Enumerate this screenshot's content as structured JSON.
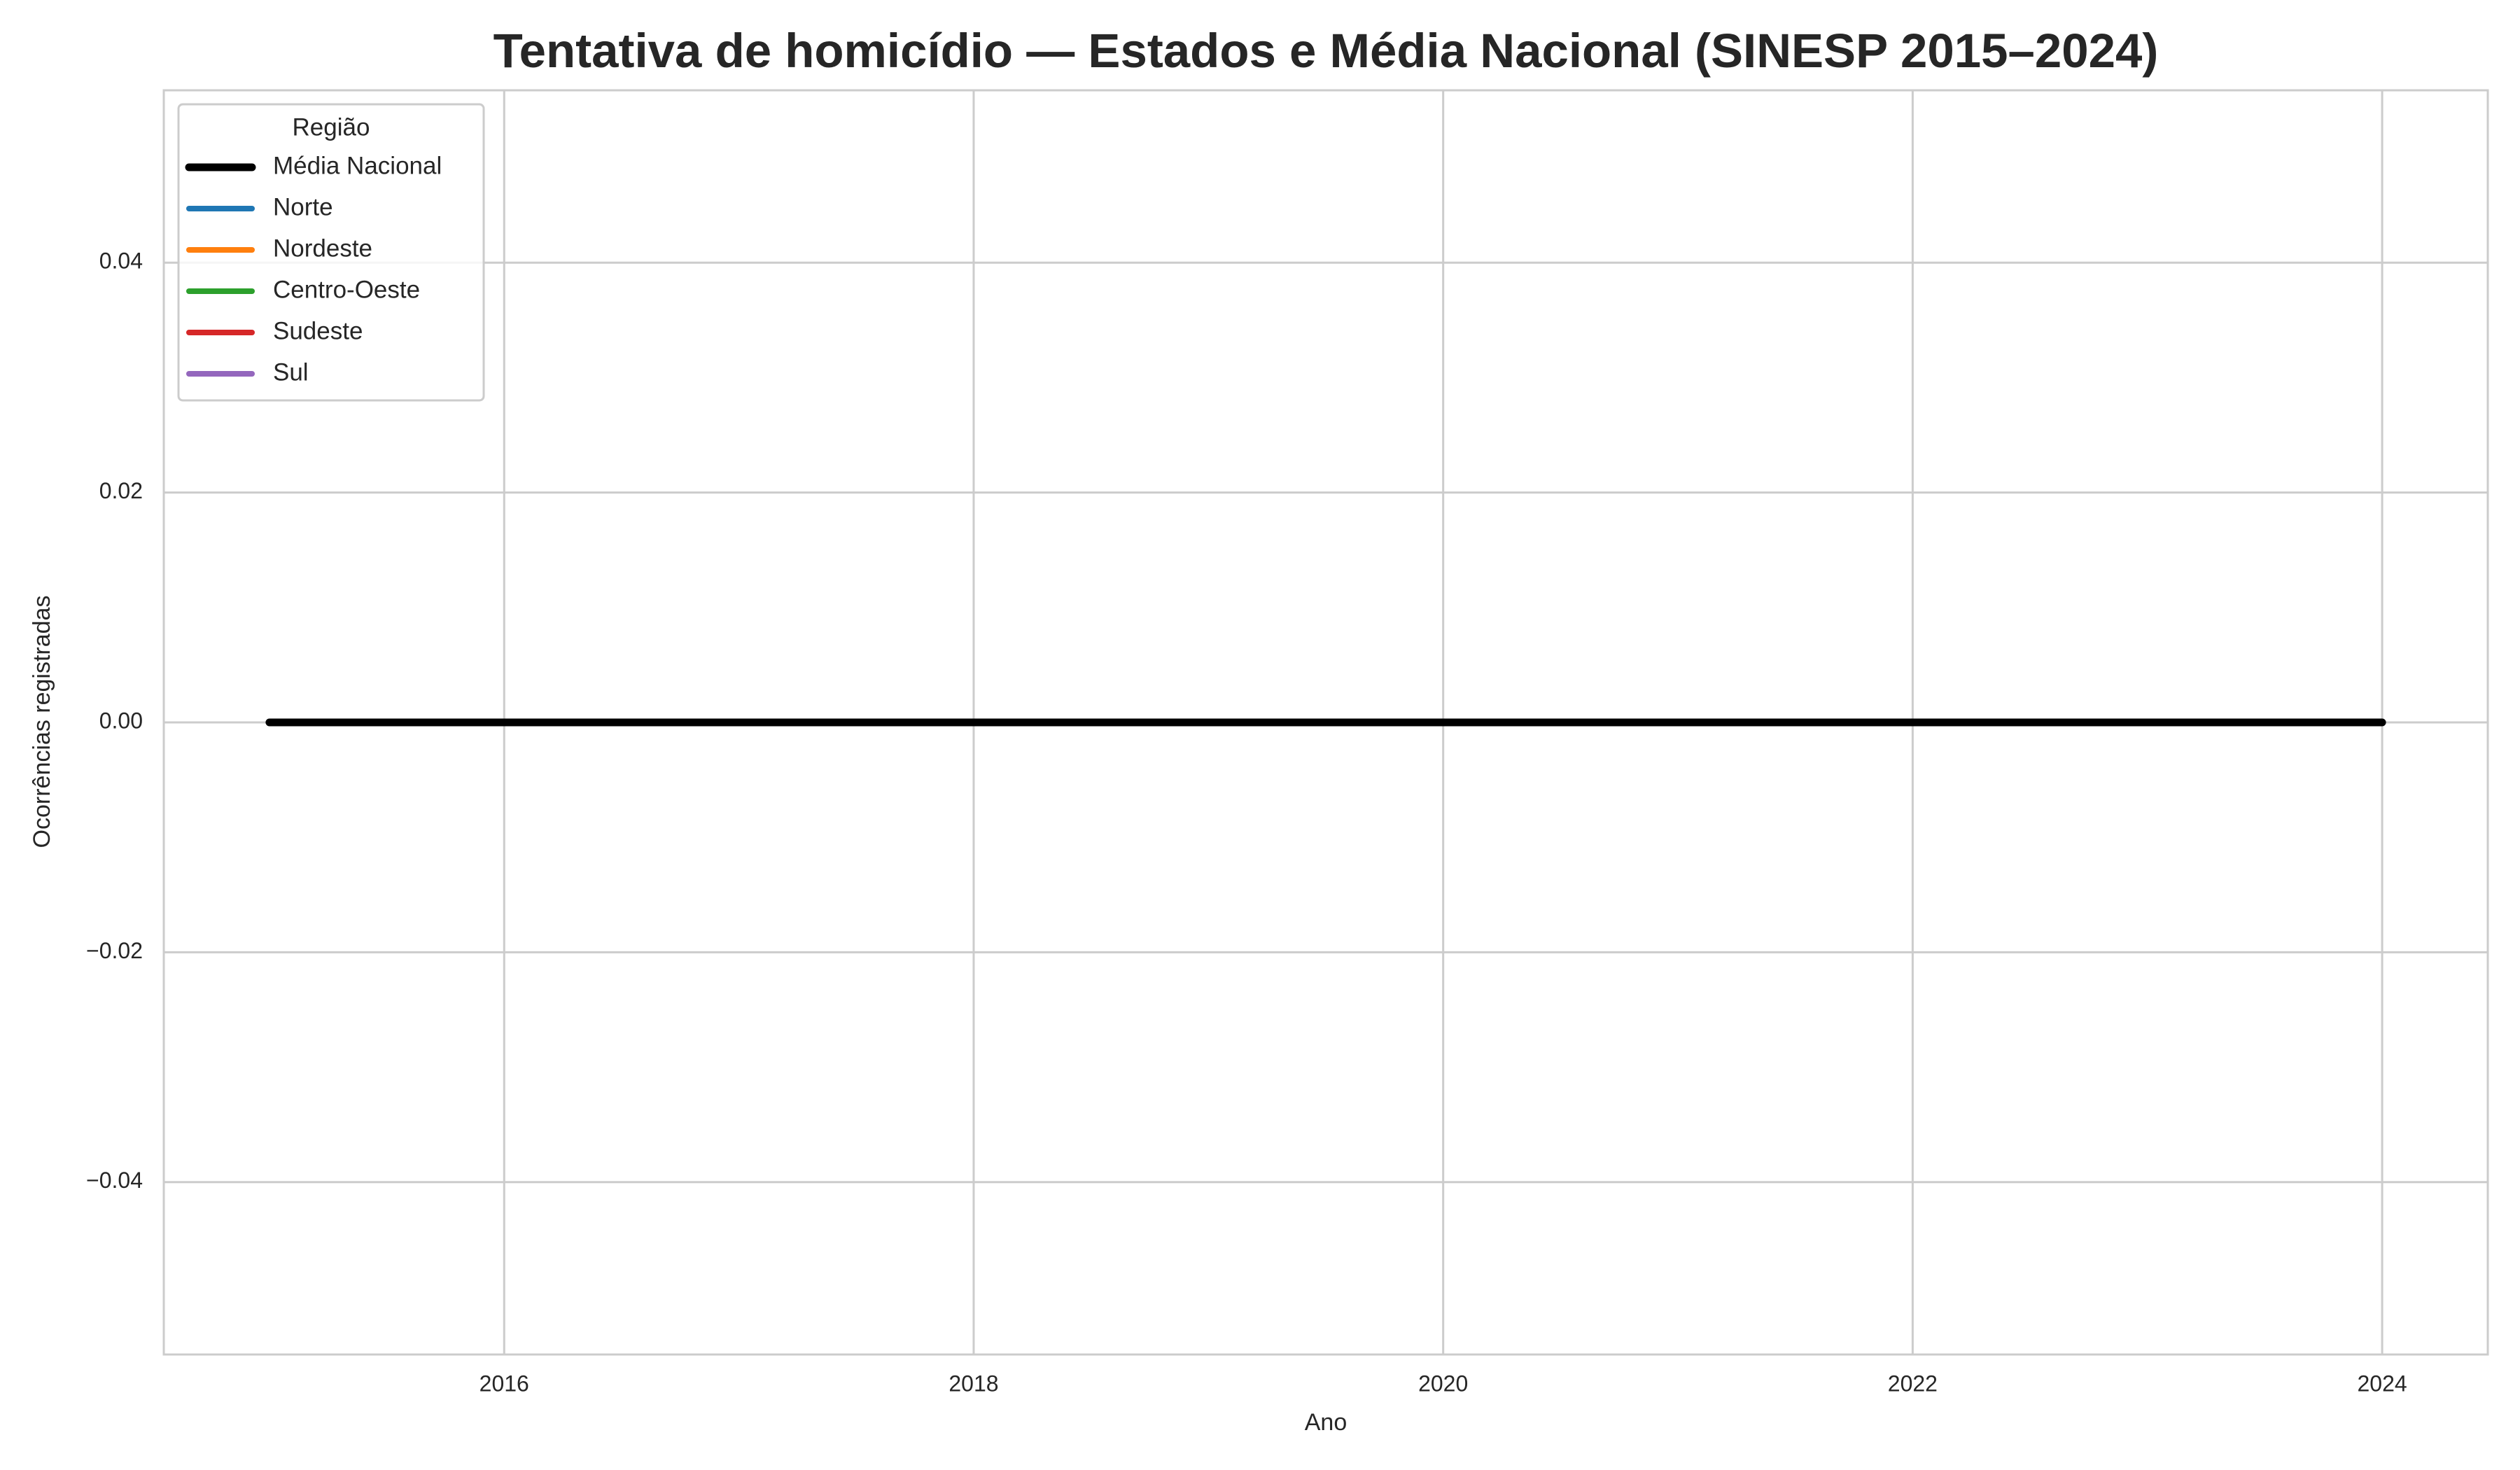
{
  "chart_data": {
    "type": "line",
    "title": "Tentativa de homicídio — Estados e Média Nacional (SINESP 2015–2024)",
    "xlabel": "Ano",
    "ylabel": "Ocorrências registradas",
    "x": [
      2015,
      2016,
      2017,
      2018,
      2019,
      2020,
      2021,
      2022,
      2023,
      2024
    ],
    "series": [
      {
        "name": "Média Nacional",
        "color": "#000000",
        "values": [
          0,
          0,
          0,
          0,
          0,
          0,
          0,
          0,
          0,
          0
        ]
      },
      {
        "name": "Norte",
        "color": "#1f77b4",
        "values": [
          0,
          0,
          0,
          0,
          0,
          0,
          0,
          0,
          0,
          0
        ]
      },
      {
        "name": "Nordeste",
        "color": "#ff7f0e",
        "values": [
          0,
          0,
          0,
          0,
          0,
          0,
          0,
          0,
          0,
          0
        ]
      },
      {
        "name": "Centro-Oeste",
        "color": "#2ca02c",
        "values": [
          0,
          0,
          0,
          0,
          0,
          0,
          0,
          0,
          0,
          0
        ]
      },
      {
        "name": "Sudeste",
        "color": "#d62728",
        "values": [
          0,
          0,
          0,
          0,
          0,
          0,
          0,
          0,
          0,
          0
        ]
      },
      {
        "name": "Sul",
        "color": "#9467bd",
        "values": [
          0,
          0,
          0,
          0,
          0,
          0,
          0,
          0,
          0,
          0
        ]
      }
    ],
    "legend_title": "Região",
    "legend": "upper left",
    "xlim": [
      2014.55,
      2024.45
    ],
    "xticks": [
      2016,
      2018,
      2020,
      2022,
      2024
    ],
    "ylim": [
      -0.055,
      0.055
    ],
    "yticks": [
      {
        "value": -0.04,
        "label": "−0.04"
      },
      {
        "value": -0.02,
        "label": "−0.02"
      },
      {
        "value": 0,
        "label": "0.00"
      },
      0.02,
      0.04
    ],
    "grid": true
  }
}
